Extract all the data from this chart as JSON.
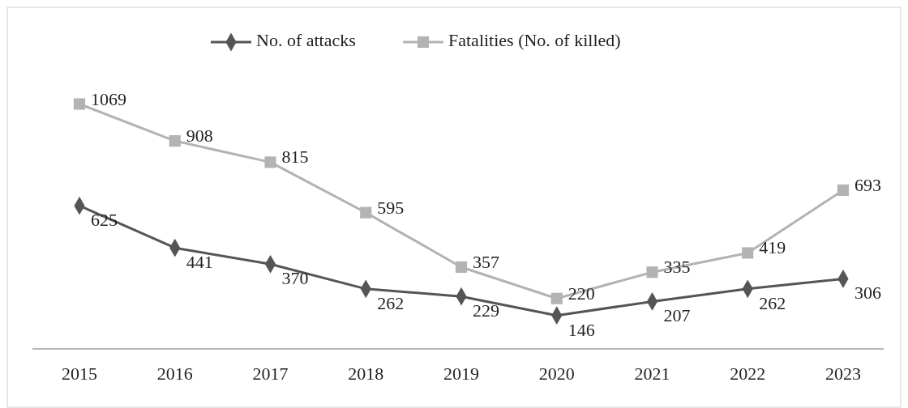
{
  "chart_data": {
    "type": "line",
    "categories": [
      "2015",
      "2016",
      "2017",
      "2018",
      "2019",
      "2020",
      "2021",
      "2022",
      "2023"
    ],
    "series": [
      {
        "name": "No. of attacks",
        "color": "#555555",
        "marker": "diamond",
        "values": [
          625,
          441,
          370,
          262,
          229,
          146,
          207,
          262,
          306
        ]
      },
      {
        "name": "Fatalities (No. of killed)",
        "color": "#b3b3b3",
        "marker": "square",
        "values": [
          1069,
          908,
          815,
          595,
          357,
          220,
          335,
          419,
          693
        ]
      }
    ],
    "data_labels": true,
    "legend": "top"
  }
}
